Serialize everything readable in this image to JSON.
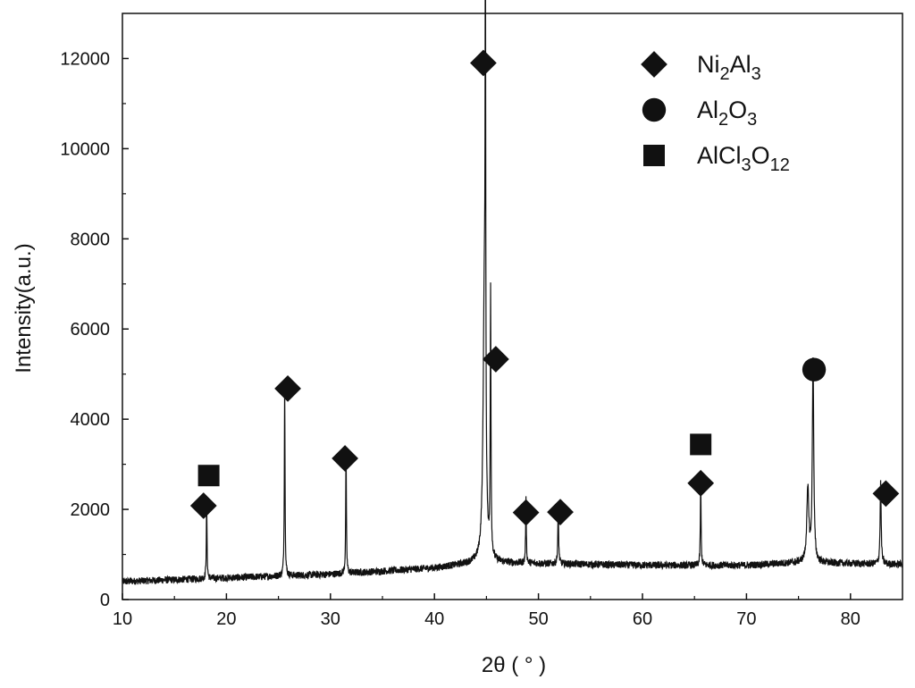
{
  "chart_data": {
    "type": "line",
    "title": "",
    "xlabel": "2θ ( ° )",
    "ylabel": "Intensity(a.u.)",
    "xlim": [
      10,
      85
    ],
    "ylim": [
      0,
      13000
    ],
    "xticks": [
      10,
      20,
      30,
      40,
      50,
      60,
      70,
      80
    ],
    "yticks": [
      0,
      2000,
      4000,
      6000,
      8000,
      10000,
      12000
    ],
    "grid": false,
    "legend_position": "top-right",
    "legend": [
      {
        "marker": "diamond",
        "base": "Ni",
        "sub1": "2",
        "mid": "Al",
        "sub2": "3",
        "tail": "",
        "sub3": ""
      },
      {
        "marker": "circle",
        "base": "Al",
        "sub1": "2",
        "mid": "O",
        "sub2": "3",
        "tail": "",
        "sub3": ""
      },
      {
        "marker": "square",
        "base": "AlCl",
        "sub1": "3",
        "mid": "O",
        "sub2": "12",
        "tail": "",
        "sub3": ""
      }
    ],
    "baseline": [
      [
        10,
        400
      ],
      [
        20,
        480
      ],
      [
        30,
        560
      ],
      [
        40,
        700
      ],
      [
        44,
        820
      ],
      [
        50,
        800
      ],
      [
        60,
        760
      ],
      [
        70,
        760
      ],
      [
        75,
        820
      ],
      [
        80,
        800
      ],
      [
        85,
        780
      ]
    ],
    "peaks": [
      {
        "x": 18.1,
        "y": 1700,
        "w": 0.1
      },
      {
        "x": 25.6,
        "y": 4300,
        "w": 0.1
      },
      {
        "x": 31.5,
        "y": 2700,
        "w": 0.1
      },
      {
        "x": 44.8,
        "y": 6000,
        "w": 0.35
      },
      {
        "x": 44.9,
        "y": 11400,
        "w": 0.08
      },
      {
        "x": 45.4,
        "y": 5900,
        "w": 0.1
      },
      {
        "x": 48.8,
        "y": 1400,
        "w": 0.1
      },
      {
        "x": 51.9,
        "y": 1200,
        "w": 0.12
      },
      {
        "x": 65.6,
        "y": 1900,
        "w": 0.1
      },
      {
        "x": 76.4,
        "y": 4500,
        "w": 0.2
      },
      {
        "x": 75.9,
        "y": 1600,
        "w": 0.3
      },
      {
        "x": 82.9,
        "y": 1800,
        "w": 0.15
      }
    ],
    "markers": [
      {
        "shape": "square",
        "x": 18.3,
        "y": 2750
      },
      {
        "shape": "diamond",
        "x": 17.8,
        "y": 2080
      },
      {
        "shape": "diamond",
        "x": 25.9,
        "y": 4680
      },
      {
        "shape": "diamond",
        "x": 31.4,
        "y": 3130
      },
      {
        "shape": "diamond",
        "x": 44.7,
        "y": 11900
      },
      {
        "shape": "diamond",
        "x": 45.9,
        "y": 5330
      },
      {
        "shape": "diamond",
        "x": 48.8,
        "y": 1930
      },
      {
        "shape": "diamond",
        "x": 52.1,
        "y": 1940
      },
      {
        "shape": "square",
        "x": 65.6,
        "y": 3440
      },
      {
        "shape": "diamond",
        "x": 65.6,
        "y": 2580
      },
      {
        "shape": "circle",
        "x": 76.5,
        "y": 5100
      },
      {
        "shape": "diamond",
        "x": 83.4,
        "y": 2350
      }
    ],
    "colors": {
      "line": "#111111",
      "marker": "#111111",
      "axis": "#111111"
    }
  }
}
